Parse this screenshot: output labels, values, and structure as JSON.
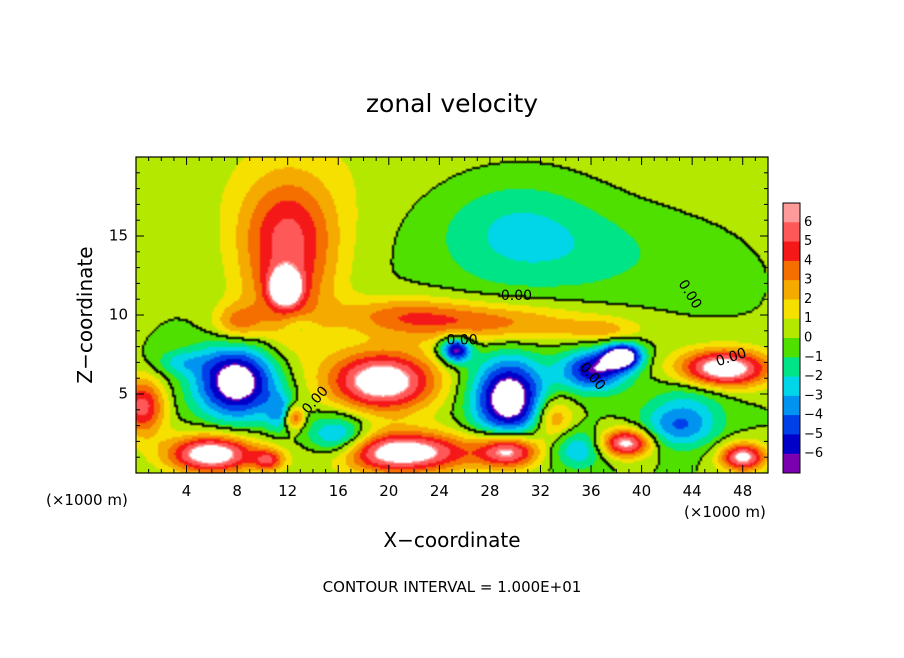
{
  "chart_data": {
    "type": "heatmap",
    "title": "zonal velocity",
    "xlabel": "X−coordinate",
    "ylabel": "Z−coordinate",
    "x_unit_left": "(×1000 m)",
    "x_unit_right": "(×1000 m)",
    "xlim": [
      0,
      50
    ],
    "ylim": [
      0,
      20
    ],
    "x_ticks": [
      4,
      8,
      12,
      16,
      20,
      24,
      28,
      32,
      36,
      40,
      44,
      48
    ],
    "y_ticks": [
      5,
      10,
      15
    ],
    "colorbar": {
      "labels": [
        "6",
        "5",
        "4",
        "3",
        "2",
        "1",
        "0",
        "−1",
        "−2",
        "−3",
        "−4",
        "−5",
        "−6"
      ],
      "colors": [
        "#ff9a9a",
        "#ff5858",
        "#f51818",
        "#f56e00",
        "#f5aa00",
        "#f5e000",
        "#b4e800",
        "#50e000",
        "#00e488",
        "#00d6e8",
        "#0094f0",
        "#0040e8",
        "#0000c8",
        "#7b00b0"
      ]
    },
    "contour_labels": [
      {
        "text": "0.00",
        "x": 30.1,
        "z": 11.2,
        "angle": 0
      },
      {
        "text": "0.00",
        "x": 25.8,
        "z": 8.4,
        "angle": 0
      },
      {
        "text": "0.00",
        "x": 14.2,
        "z": 4.6,
        "angle": 48
      },
      {
        "text": "0.00",
        "x": 36.1,
        "z": 6.1,
        "angle": -50
      },
      {
        "text": "0.00",
        "x": 43.8,
        "z": 11.3,
        "angle": -58
      },
      {
        "text": "0.00",
        "x": 47.1,
        "z": 7.3,
        "angle": 18
      }
    ],
    "footer": "CONTOUR INTERVAL = 1.000E+01",
    "blobs": [
      {
        "x": 25,
        "z": 20,
        "rx": 30,
        "rz": 6,
        "v": 0.8
      },
      {
        "x": 30,
        "z": 15.5,
        "rx": 7,
        "rz": 3.8,
        "v": -2.5
      },
      {
        "x": 38,
        "z": 14,
        "rx": 8,
        "rz": 3,
        "v": -1
      },
      {
        "x": 12,
        "z": 13,
        "rx": 3.8,
        "rz": 5,
        "v": 4.5
      },
      {
        "x": 11.8,
        "z": 11.7,
        "rx": 1.2,
        "rz": 1.1,
        "v": 7
      },
      {
        "x": 12,
        "z": 16,
        "rx": 4,
        "rz": 3,
        "v": 1.5
      },
      {
        "x": 28,
        "z": 9.5,
        "rx": 8,
        "rz": 1.3,
        "v": 3.5
      },
      {
        "x": 21,
        "z": 10,
        "rx": 5,
        "rz": 1.2,
        "v": 2.5
      },
      {
        "x": 8,
        "z": 9.5,
        "rx": 2,
        "rz": 1.2,
        "v": 3
      },
      {
        "x": 13,
        "z": 9.2,
        "rx": 1.3,
        "rz": 0.7,
        "v": -1.5
      },
      {
        "x": 19.5,
        "z": 5.8,
        "rx": 4.2,
        "rz": 1.9,
        "v": 8
      },
      {
        "x": 8,
        "z": 5.8,
        "rx": 3.2,
        "rz": 2.3,
        "v": -8
      },
      {
        "x": 11.5,
        "z": 3.8,
        "rx": 1.2,
        "rz": 1.2,
        "v": -3
      },
      {
        "x": 12.5,
        "z": 3.5,
        "rx": 0.8,
        "rz": 0.8,
        "v": 5
      },
      {
        "x": 25.3,
        "z": 7.8,
        "rx": 1.2,
        "rz": 0.8,
        "v": -7
      },
      {
        "x": 29.5,
        "z": 4.7,
        "rx": 2.8,
        "rz": 2.5,
        "v": -8
      },
      {
        "x": 36.2,
        "z": 6.5,
        "rx": 2.6,
        "rz": 1.3,
        "v": -6
      },
      {
        "x": 38.5,
        "z": 7.4,
        "rx": 1.5,
        "rz": 0.8,
        "v": -8
      },
      {
        "x": 46.5,
        "z": 6.6,
        "rx": 3.6,
        "rz": 1.2,
        "v": 8
      },
      {
        "x": 0.5,
        "z": 4.2,
        "rx": 1.8,
        "rz": 1.8,
        "v": 5.5
      },
      {
        "x": 6,
        "z": 1.2,
        "rx": 3.5,
        "rz": 1.2,
        "v": 8
      },
      {
        "x": 21,
        "z": 1.3,
        "rx": 5.5,
        "rz": 1.3,
        "v": 8
      },
      {
        "x": 29.5,
        "z": 1.4,
        "rx": 2.4,
        "rz": 1.1,
        "v": 7
      },
      {
        "x": 38.8,
        "z": 1.9,
        "rx": 2,
        "rz": 0.9,
        "v": 7
      },
      {
        "x": 48,
        "z": 1,
        "rx": 1.8,
        "rz": 0.9,
        "v": 7
      },
      {
        "x": 16,
        "z": 2.2,
        "rx": 2.5,
        "rz": 1.4,
        "v": -4.5
      },
      {
        "x": 35,
        "z": 1.5,
        "rx": 2,
        "rz": 1.2,
        "v": -3
      },
      {
        "x": 43,
        "z": 3,
        "rx": 3,
        "rz": 1.4,
        "v": -4
      },
      {
        "x": 33,
        "z": 3.5,
        "rx": 1.6,
        "rz": 1.4,
        "v": 3.5
      },
      {
        "x": 10.5,
        "z": 0.8,
        "rx": 1.2,
        "rz": 0.7,
        "v": 4
      },
      {
        "x": 3.5,
        "z": 7,
        "rx": 2,
        "rz": 0.8,
        "v": -2
      },
      {
        "x": 44,
        "z": 5,
        "rx": 3,
        "rz": 1.4,
        "v": -1.5
      },
      {
        "x": 37,
        "z": 9,
        "rx": 3,
        "rz": 0.8,
        "v": 2
      }
    ]
  }
}
